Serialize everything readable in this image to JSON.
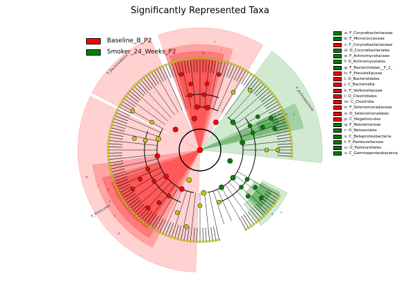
{
  "title": "Significantly Represented Taxa",
  "groups": [
    {
      "name": "Baseline_B_P2",
      "color": "#ff0000"
    },
    {
      "name": "Smoker_24_Weeks_P2",
      "color": "#008000"
    }
  ],
  "clade_legend": [
    {
      "label": "a: F_Corynebacteriaceae",
      "group": "Smoker_24_Weeks_P2"
    },
    {
      "label": "b: F_Micrococcaceae",
      "group": "Smoker_24_Weeks_P2"
    },
    {
      "label": "c: F_Corynebacteriaceae",
      "group": "Baseline_B_P2"
    },
    {
      "label": "d: O_Corynebacteriales",
      "group": "Smoker_24_Weeks_P2"
    },
    {
      "label": "e: F_Actinomycetaceae",
      "group": "Smoker_24_Weeks_P2"
    },
    {
      "label": "f: O_Actinomycetales",
      "group": "Smoker_24_Weeks_P2"
    },
    {
      "label": "g: F_Bacteroidales__F_2_",
      "group": "Smoker_24_Weeks_P2"
    },
    {
      "label": "h: F_Prevotellaceae",
      "group": "Baseline_B_P2"
    },
    {
      "label": "i: O_Bacteroidales",
      "group": "Baseline_B_P2"
    },
    {
      "label": "j: C_Bacteroidia",
      "group": "Baseline_B_P2"
    },
    {
      "label": "k: F_Veillonellaceae",
      "group": "Baseline_B_P2"
    },
    {
      "label": "l: O_Clostridiales",
      "group": "Baseline_B_P2"
    },
    {
      "label": "m: C_Clostridia",
      "group": "Baseline_B_P2"
    },
    {
      "label": "n: F_Selenomonadaceae",
      "group": "Baseline_B_P2"
    },
    {
      "label": "o: O_Selenomonadales",
      "group": "Baseline_B_P2"
    },
    {
      "label": "p: C_Negativicutes",
      "group": "Baseline_B_P2"
    },
    {
      "label": "q: F_Neisseriaceae",
      "group": "Smoker_24_Weeks_P2"
    },
    {
      "label": "r: O_Neisseriales",
      "group": "Smoker_24_Weeks_P2"
    },
    {
      "label": "s: C_Betaproteobacteria",
      "group": "Smoker_24_Weeks_P2"
    },
    {
      "label": "t: F_Pasteurellaceae",
      "group": "Smoker_24_Weeks_P2"
    },
    {
      "label": "u: O_Pasteurellales",
      "group": "Smoker_24_Weeks_P2"
    },
    {
      "label": "v: C_Gammaproteobacteria",
      "group": "Smoker_24_Weeks_P2"
    }
  ],
  "phylum_labels": {
    "bacteroidetes": "P_Bacteroidetes",
    "firmicutes": "P_Firmicutes",
    "actinobacteria": "P_Actinobacteria"
  },
  "colors": {
    "baseline": "#ff0000",
    "smoker": "#008000",
    "nonsignificant_node": "#c8c800"
  }
}
